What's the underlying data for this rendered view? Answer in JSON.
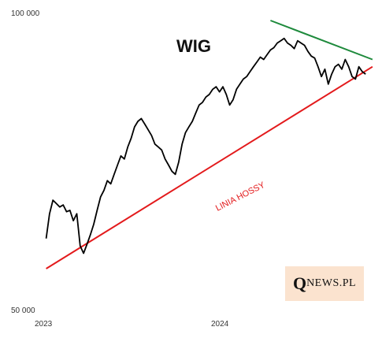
{
  "chart_data": {
    "type": "line",
    "title": "WIG",
    "xlabel": "",
    "ylabel": "",
    "x_ticks": [
      "2023",
      "2024"
    ],
    "y_ticks": [
      "100 000",
      "50 000"
    ],
    "ylim": [
      50000,
      100000
    ],
    "y_scale": "log",
    "grid": false,
    "series": [
      {
        "name": "",
        "color": "#000000",
        "points": [
          [
            "2023-01-02",
            59000
          ],
          [
            "2023-01-09",
            62500
          ],
          [
            "2023-01-16",
            64500
          ],
          [
            "2023-01-23",
            64000
          ],
          [
            "2023-01-30",
            63500
          ],
          [
            "2023-02-06",
            63800
          ],
          [
            "2023-02-13",
            62800
          ],
          [
            "2023-02-20",
            63000
          ],
          [
            "2023-02-27",
            61500
          ],
          [
            "2023-03-06",
            62500
          ],
          [
            "2023-03-13",
            58000
          ],
          [
            "2023-03-20",
            57000
          ],
          [
            "2023-03-27",
            58200
          ],
          [
            "2023-04-03",
            59500
          ],
          [
            "2023-04-10",
            61000
          ],
          [
            "2023-04-17",
            63000
          ],
          [
            "2023-04-24",
            65000
          ],
          [
            "2023-05-01",
            66000
          ],
          [
            "2023-05-08",
            67500
          ],
          [
            "2023-05-15",
            67000
          ],
          [
            "2023-05-22",
            68500
          ],
          [
            "2023-05-29",
            70000
          ],
          [
            "2023-06-05",
            71500
          ],
          [
            "2023-06-12",
            71000
          ],
          [
            "2023-06-19",
            73000
          ],
          [
            "2023-06-26",
            74500
          ],
          [
            "2023-07-03",
            76500
          ],
          [
            "2023-07-10",
            77500
          ],
          [
            "2023-07-17",
            78000
          ],
          [
            "2023-07-24",
            77000
          ],
          [
            "2023-07-31",
            76000
          ],
          [
            "2023-08-07",
            75000
          ],
          [
            "2023-08-14",
            73500
          ],
          [
            "2023-08-21",
            73000
          ],
          [
            "2023-08-28",
            72500
          ],
          [
            "2023-09-04",
            71000
          ],
          [
            "2023-09-11",
            70000
          ],
          [
            "2023-09-18",
            69000
          ],
          [
            "2023-09-25",
            68500
          ],
          [
            "2023-10-02",
            70500
          ],
          [
            "2023-10-09",
            73500
          ],
          [
            "2023-10-16",
            75500
          ],
          [
            "2023-10-23",
            76500
          ],
          [
            "2023-10-30",
            77500
          ],
          [
            "2023-11-06",
            79000
          ],
          [
            "2023-11-13",
            80500
          ],
          [
            "2023-11-20",
            81000
          ],
          [
            "2023-11-27",
            82000
          ],
          [
            "2023-12-04",
            82500
          ],
          [
            "2023-12-11",
            83500
          ],
          [
            "2023-12-18",
            84000
          ],
          [
            "2023-12-25",
            83000
          ],
          [
            "2024-01-01",
            84000
          ],
          [
            "2024-01-08",
            82500
          ],
          [
            "2024-01-15",
            80500
          ],
          [
            "2024-01-22",
            81500
          ],
          [
            "2024-01-29",
            83500
          ],
          [
            "2024-02-05",
            84500
          ],
          [
            "2024-02-12",
            85500
          ],
          [
            "2024-02-19",
            86000
          ],
          [
            "2024-02-26",
            87000
          ],
          [
            "2024-03-04",
            88000
          ],
          [
            "2024-03-11",
            89000
          ],
          [
            "2024-03-18",
            90000
          ],
          [
            "2024-03-25",
            89500
          ],
          [
            "2024-04-01",
            90500
          ],
          [
            "2024-04-08",
            91500
          ],
          [
            "2024-04-15",
            92000
          ],
          [
            "2024-04-22",
            93000
          ],
          [
            "2024-04-29",
            93500
          ],
          [
            "2024-05-06",
            94000
          ],
          [
            "2024-05-13",
            93000
          ],
          [
            "2024-05-20",
            92500
          ],
          [
            "2024-05-27",
            91800
          ],
          [
            "2024-06-03",
            93500
          ],
          [
            "2024-06-10",
            93000
          ],
          [
            "2024-06-17",
            92500
          ],
          [
            "2024-06-24",
            91200
          ],
          [
            "2024-07-01",
            90200
          ],
          [
            "2024-07-08",
            89800
          ],
          [
            "2024-07-15",
            88000
          ],
          [
            "2024-07-22",
            86000
          ],
          [
            "2024-07-29",
            87500
          ],
          [
            "2024-08-05",
            84500
          ],
          [
            "2024-08-12",
            86500
          ],
          [
            "2024-08-19",
            88000
          ],
          [
            "2024-08-26",
            88500
          ],
          [
            "2024-09-02",
            87500
          ],
          [
            "2024-09-09",
            89500
          ],
          [
            "2024-09-16",
            88000
          ],
          [
            "2024-09-23",
            86000
          ],
          [
            "2024-09-30",
            85500
          ],
          [
            "2024-10-07",
            88000
          ],
          [
            "2024-10-14",
            87000
          ],
          [
            "2024-10-21",
            86500
          ]
        ]
      }
    ],
    "trendlines": [
      {
        "name": "LINIA HOSSY",
        "color": "#e31a1c",
        "from": [
          "2023-01-02",
          55000
        ],
        "to": [
          "2024-11-04",
          88000
        ]
      },
      {
        "name": "",
        "color": "#1e8a3c",
        "from": [
          "2024-04-08",
          98000
        ],
        "to": [
          "2024-11-04",
          89500
        ]
      }
    ],
    "annotations": [
      {
        "text": "LINIA HOSSY",
        "color": "#e31a1c"
      }
    ]
  },
  "watermark": {
    "big": "Q",
    "small": "NEWS.PL"
  }
}
